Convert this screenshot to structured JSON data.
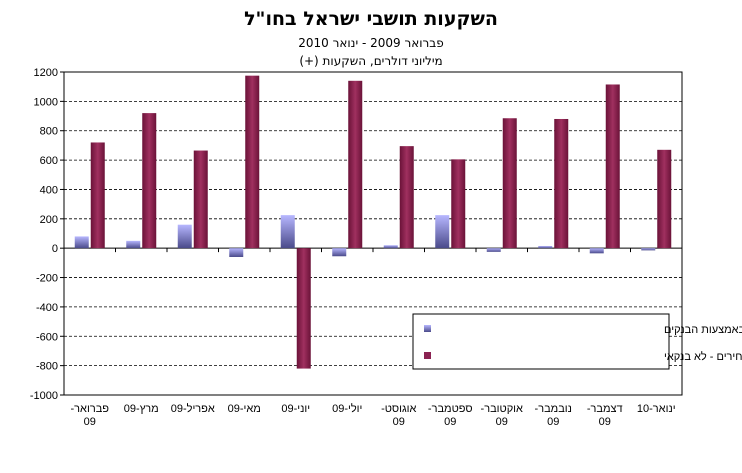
{
  "header": {
    "title": "השקעות תושבי ישראל בחו\"ל",
    "subtitle": "פברואר 2009 - ינואר 2010",
    "unit": "מיליוני דולרים, השקעות (+)"
  },
  "colors": {
    "direct": "#9e9ef0",
    "direct_dark": "#4a4a8a",
    "portfolio": "#8b2252",
    "portfolio_dark": "#5a0f33",
    "gridline": "#000000"
  },
  "chart_data": {
    "type": "bar",
    "categories": [
      [
        "פברואר-",
        "09"
      ],
      [
        "מרץ-09"
      ],
      [
        "אפריל-09"
      ],
      [
        "מאי-09"
      ],
      [
        "יוני-09"
      ],
      [
        "יולי-09"
      ],
      [
        "אוגוסט-",
        "09"
      ],
      [
        "ספטמבר-",
        "09"
      ],
      [
        "אוקטובר-",
        "09"
      ],
      [
        "נובמבר-",
        "09"
      ],
      [
        "דצמבר-",
        "09"
      ],
      [
        "ינואר-10"
      ]
    ],
    "series": [
      {
        "name": "השקעות ישירות בחו\"ל באמצעות הבנקים",
        "values": [
          80,
          50,
          160,
          -60,
          225,
          -55,
          20,
          225,
          -25,
          15,
          -35,
          -15
        ]
      },
      {
        "name": "השקעות פיננסיות בני\"ע סחירים - לא בנקאי",
        "values": [
          720,
          920,
          665,
          1175,
          -820,
          1140,
          695,
          605,
          885,
          880,
          1115,
          670
        ]
      }
    ],
    "ylim": [
      -1000,
      1200
    ],
    "yticks": [
      "1200",
      "1000",
      "800",
      "600",
      "400",
      "200",
      "0",
      "-200",
      "-400",
      "-600",
      "-800",
      "-1000"
    ],
    "ytick_values": [
      1200,
      1000,
      800,
      600,
      400,
      200,
      0,
      -200,
      -400,
      -600,
      -800,
      -1000
    ],
    "grid": true,
    "legend_position": "lower-right"
  }
}
